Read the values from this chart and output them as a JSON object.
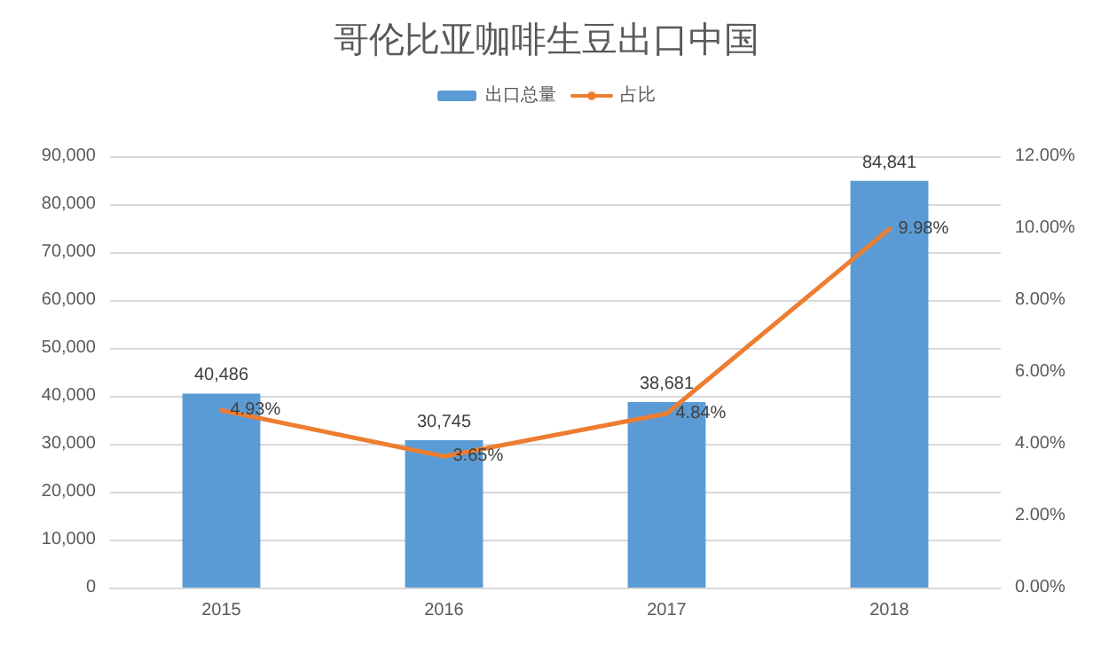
{
  "chart_data": {
    "type": "bar",
    "title": "哥伦比亚咖啡生豆出口中国",
    "categories": [
      "2015",
      "2016",
      "2017",
      "2018"
    ],
    "series": [
      {
        "name": "出口总量",
        "color": "#5b9bd5",
        "values": [
          40486,
          30745,
          38681,
          84841
        ],
        "value_labels": [
          "40,486",
          "30,745",
          "38,681",
          "84,841"
        ]
      },
      {
        "name": "占比",
        "type": "line",
        "axis": "y2",
        "color": "#ed7d31",
        "values": [
          4.93,
          3.65,
          4.84,
          9.98
        ],
        "value_labels": [
          "4.93%",
          "3.65%",
          "4.84%",
          "9.98%"
        ]
      }
    ],
    "ylim": [
      0,
      90000
    ],
    "yticks": [
      {
        "value": 0,
        "label": "0"
      },
      {
        "value": 10000,
        "label": "10,000"
      },
      {
        "value": 20000,
        "label": "20,000"
      },
      {
        "value": 30000,
        "label": "30,000"
      },
      {
        "value": 40000,
        "label": "40,000"
      },
      {
        "value": 50000,
        "label": "50,000"
      },
      {
        "value": 60000,
        "label": "60,000"
      },
      {
        "value": 70000,
        "label": "70,000"
      },
      {
        "value": 80000,
        "label": "80,000"
      },
      {
        "value": 90000,
        "label": "90,000"
      }
    ],
    "y2lim": [
      0,
      12
    ],
    "y2ticks": [
      {
        "value": 0,
        "label": "0.00%"
      },
      {
        "value": 2,
        "label": "2.00%"
      },
      {
        "value": 4,
        "label": "4.00%"
      },
      {
        "value": 6,
        "label": "6.00%"
      },
      {
        "value": 8,
        "label": "8.00%"
      },
      {
        "value": 10,
        "label": "10.00%"
      },
      {
        "value": 12,
        "label": "12.00%"
      }
    ],
    "grid": "y",
    "legend": "top",
    "marker": "none"
  }
}
